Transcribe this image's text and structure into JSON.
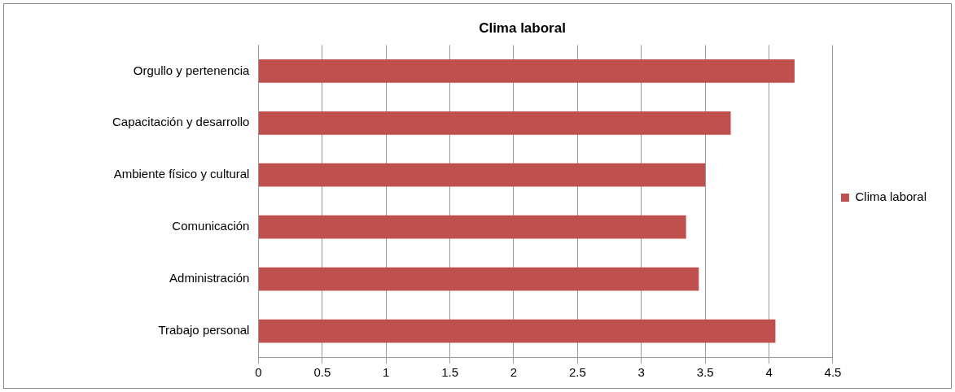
{
  "chart_data": {
    "type": "bar",
    "title": "Clima laboral",
    "orientation": "horizontal",
    "categories": [
      "Orgullo y pertenencia",
      "Capacitación y desarrollo",
      "Ambiente físico y cultural",
      "Comunicación",
      "Administración",
      "Trabajo personal"
    ],
    "series": [
      {
        "name": "Clima laboral",
        "color": "#c0504d",
        "values": [
          4.2,
          3.7,
          3.5,
          3.35,
          3.45,
          4.05
        ]
      }
    ],
    "xlim": [
      0,
      4.5
    ],
    "xticks": [
      0,
      0.5,
      1,
      1.5,
      2,
      2.5,
      3,
      3.5,
      4,
      4.5
    ],
    "grid": "x",
    "legend": "right"
  }
}
